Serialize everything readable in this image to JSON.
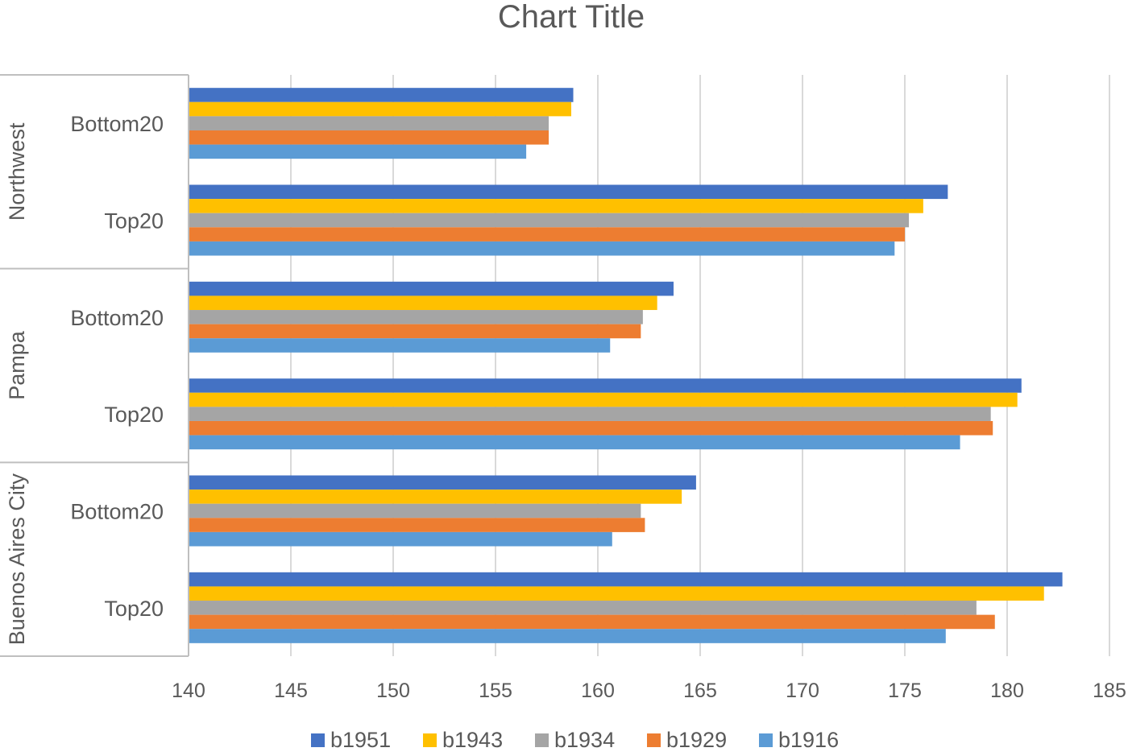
{
  "chart_data": {
    "type": "bar",
    "orientation": "horizontal",
    "title": "Chart Title",
    "xlim": [
      140,
      185
    ],
    "xticks": [
      140,
      145,
      150,
      155,
      160,
      165,
      170,
      175,
      180,
      185
    ],
    "grid": true,
    "legend_position": "bottom",
    "groups": [
      {
        "name": "Northwest",
        "categories": [
          "Bottom20",
          "Top20"
        ]
      },
      {
        "name": "Pampa",
        "categories": [
          "Bottom20",
          "Top20"
        ]
      },
      {
        "name": "Buenos Aires City",
        "categories": [
          "Bottom20",
          "Top20"
        ]
      }
    ],
    "series": [
      {
        "name": "b1951",
        "color": "#4472C4",
        "values": [
          158.8,
          177.1,
          163.7,
          180.7,
          164.8,
          182.7
        ]
      },
      {
        "name": "b1943",
        "color": "#FFC000",
        "values": [
          158.7,
          175.9,
          162.9,
          180.5,
          164.1,
          181.8
        ]
      },
      {
        "name": "b1934",
        "color": "#A5A5A5",
        "values": [
          157.6,
          175.2,
          162.2,
          179.2,
          162.1,
          178.5
        ]
      },
      {
        "name": "b1929",
        "color": "#ED7D31",
        "values": [
          157.6,
          175.0,
          162.1,
          179.3,
          162.3,
          179.4
        ]
      },
      {
        "name": "b1916",
        "color": "#5B9BD5",
        "values": [
          156.5,
          174.5,
          160.6,
          177.7,
          160.7,
          177.0
        ]
      }
    ]
  }
}
